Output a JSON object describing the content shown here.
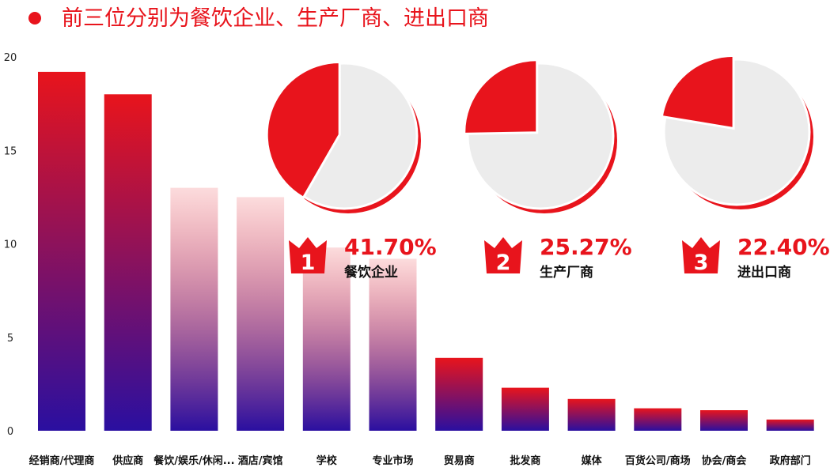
{
  "header": {
    "title": "前三位分别为餐饮企业、生产厂商、进出口商",
    "accent_color": "#e8141c"
  },
  "chart_data": {
    "type": "bar",
    "categories": [
      "经销商/代理商",
      "供应商",
      "餐饮/娱乐/休闲...",
      "酒店/宾馆",
      "学校",
      "专业市场",
      "贸易商",
      "批发商",
      "媒体",
      "百货公司/商场",
      "协会/商会",
      "政府部门"
    ],
    "values": [
      19.2,
      18.0,
      13.0,
      12.5,
      9.8,
      9.2,
      3.9,
      2.3,
      1.7,
      1.2,
      1.1,
      0.6
    ],
    "ylim": [
      0,
      20
    ],
    "yticks": [
      "0",
      "5",
      "10",
      "15",
      "20"
    ],
    "grid": false,
    "gradient": {
      "top": "#e8141c",
      "bottom": "#2a0fa0"
    }
  },
  "top_three": [
    {
      "rank": "1",
      "percent": "41.70%",
      "label": "餐饮企业",
      "share": 0.417
    },
    {
      "rank": "2",
      "percent": "25.27%",
      "label": "生产厂商",
      "share": 0.2527
    },
    {
      "rank": "3",
      "percent": "22.40%",
      "label": "进出口商",
      "share": 0.224
    }
  ],
  "colors": {
    "pie_base": "#ececec",
    "pie_accent": "#e8141c",
    "text": "#111111"
  }
}
